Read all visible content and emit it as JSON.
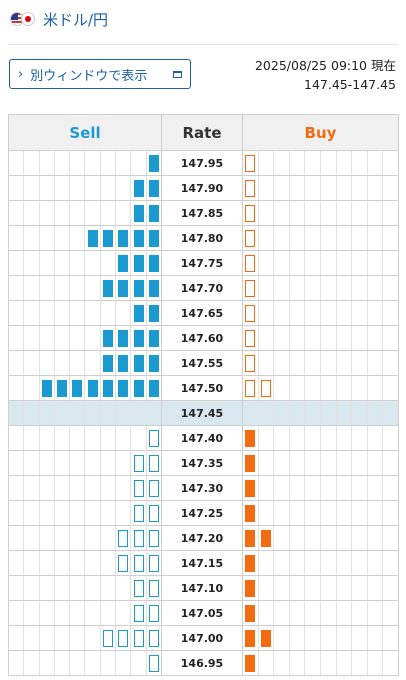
{
  "header": {
    "flag_left_icon": "us-flag-icon",
    "flag_right_icon": "jp-flag-icon",
    "pair": "米ドル/円"
  },
  "toolbar": {
    "window_button_label": "別ウィンドウで表示",
    "chevron_icon": "chevron-right-icon",
    "window_icon": "new-window-icon"
  },
  "meta": {
    "timestamp": "2025/08/25 09:10 現在",
    "bid_ask": "147.45-147.45"
  },
  "colors": {
    "accent": "#1a5fa8",
    "sell": "#1a9ad0",
    "buy": "#f26b10",
    "current_row": "#d9e8ef"
  },
  "board": {
    "columns": {
      "sell": "Sell",
      "rate": "Rate",
      "buy": "Buy"
    },
    "grid_columns_per_side": 10,
    "current_rate": "147.45",
    "rows": [
      {
        "rate": "147.95",
        "sell": 1,
        "sell_style": "filled",
        "buy": 1,
        "buy_style": "outline"
      },
      {
        "rate": "147.90",
        "sell": 2,
        "sell_style": "filled",
        "buy": 1,
        "buy_style": "outline"
      },
      {
        "rate": "147.85",
        "sell": 2,
        "sell_style": "filled",
        "buy": 1,
        "buy_style": "outline"
      },
      {
        "rate": "147.80",
        "sell": 5,
        "sell_style": "filled",
        "buy": 1,
        "buy_style": "outline"
      },
      {
        "rate": "147.75",
        "sell": 3,
        "sell_style": "filled",
        "buy": 1,
        "buy_style": "outline"
      },
      {
        "rate": "147.70",
        "sell": 4,
        "sell_style": "filled",
        "buy": 1,
        "buy_style": "outline"
      },
      {
        "rate": "147.65",
        "sell": 2,
        "sell_style": "filled",
        "buy": 1,
        "buy_style": "outline"
      },
      {
        "rate": "147.60",
        "sell": 4,
        "sell_style": "filled",
        "buy": 1,
        "buy_style": "outline"
      },
      {
        "rate": "147.55",
        "sell": 4,
        "sell_style": "filled",
        "buy": 1,
        "buy_style": "outline"
      },
      {
        "rate": "147.50",
        "sell": 8,
        "sell_style": "filled",
        "buy": 2,
        "buy_style": "outline"
      },
      {
        "rate": "147.45",
        "sell": 0,
        "sell_style": "none",
        "buy": 0,
        "buy_style": "none"
      },
      {
        "rate": "147.40",
        "sell": 1,
        "sell_style": "outline",
        "buy": 1,
        "buy_style": "filled"
      },
      {
        "rate": "147.35",
        "sell": 2,
        "sell_style": "outline",
        "buy": 1,
        "buy_style": "filled"
      },
      {
        "rate": "147.30",
        "sell": 2,
        "sell_style": "outline",
        "buy": 1,
        "buy_style": "filled"
      },
      {
        "rate": "147.25",
        "sell": 2,
        "sell_style": "outline",
        "buy": 1,
        "buy_style": "filled"
      },
      {
        "rate": "147.20",
        "sell": 3,
        "sell_style": "outline",
        "buy": 2,
        "buy_style": "filled"
      },
      {
        "rate": "147.15",
        "sell": 3,
        "sell_style": "outline",
        "buy": 1,
        "buy_style": "filled"
      },
      {
        "rate": "147.10",
        "sell": 2,
        "sell_style": "outline",
        "buy": 1,
        "buy_style": "filled"
      },
      {
        "rate": "147.05",
        "sell": 2,
        "sell_style": "outline",
        "buy": 1,
        "buy_style": "filled"
      },
      {
        "rate": "147.00",
        "sell": 4,
        "sell_style": "outline",
        "buy": 2,
        "buy_style": "filled"
      },
      {
        "rate": "146.95",
        "sell": 1,
        "sell_style": "outline",
        "buy": 1,
        "buy_style": "filled"
      }
    ]
  }
}
